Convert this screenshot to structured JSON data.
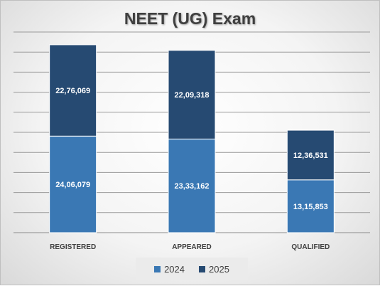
{
  "chart_data": {
    "type": "bar",
    "stacked": true,
    "title": "NEET (UG) Exam",
    "categories": [
      "REGISTERED",
      "APPEARED",
      "QUALIFIED"
    ],
    "series": [
      {
        "name": "2024",
        "color": "#3a78b4",
        "values": [
          2406079,
          2333162,
          1315853
        ],
        "labels": [
          "24,06,079",
          "23,33,162",
          "13,15,853"
        ]
      },
      {
        "name": "2025",
        "color": "#264a72",
        "values": [
          2276069,
          2209318,
          1236531
        ],
        "labels": [
          "22,76,069",
          "22,09,318",
          "12,36,531"
        ]
      }
    ],
    "ylim": [
      0,
      5000000
    ],
    "grid": true,
    "legend": "bottom"
  }
}
